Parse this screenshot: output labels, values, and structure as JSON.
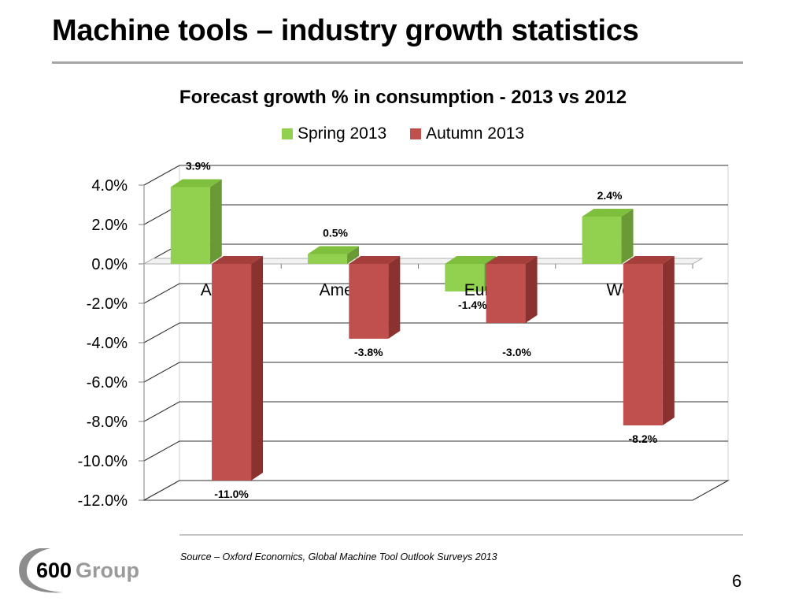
{
  "slide": {
    "title": "Machine tools – industry growth statistics",
    "source": "Source – Oxford Economics, Global Machine Tool Outlook Surveys 2013",
    "page_number": "6",
    "logo_text": "600Group"
  },
  "chart_data": {
    "type": "bar",
    "title": "Forecast growth % in consumption -  2013 vs 2012",
    "categories": [
      "Asia",
      "Americas",
      "Europe",
      "World"
    ],
    "series": [
      {
        "name": "Spring 2013",
        "values": [
          3.9,
          0.5,
          -1.4,
          2.4
        ],
        "labels": [
          "3.9%",
          "0.5%",
          "-1.4%",
          "2.4%"
        ],
        "color": "#92d050",
        "color_side": "#6a9a35",
        "color_top": "#7fbf3e"
      },
      {
        "name": "Autumn 2013",
        "values": [
          -11.0,
          -3.8,
          -3.0,
          -8.2
        ],
        "labels": [
          "-11.0%",
          "-3.8%",
          "-3.0%",
          "-8.2%"
        ],
        "color": "#c0504d",
        "color_side": "#8b3130",
        "color_top": "#a43f3c"
      }
    ],
    "yticks": [
      "4.0%",
      "2.0%",
      "0.0%",
      "-2.0%",
      "-4.0%",
      "-6.0%",
      "-8.0%",
      "-10.0%",
      "-12.0%"
    ],
    "ylim": [
      -12,
      4
    ],
    "legend": "top",
    "grid": true
  }
}
